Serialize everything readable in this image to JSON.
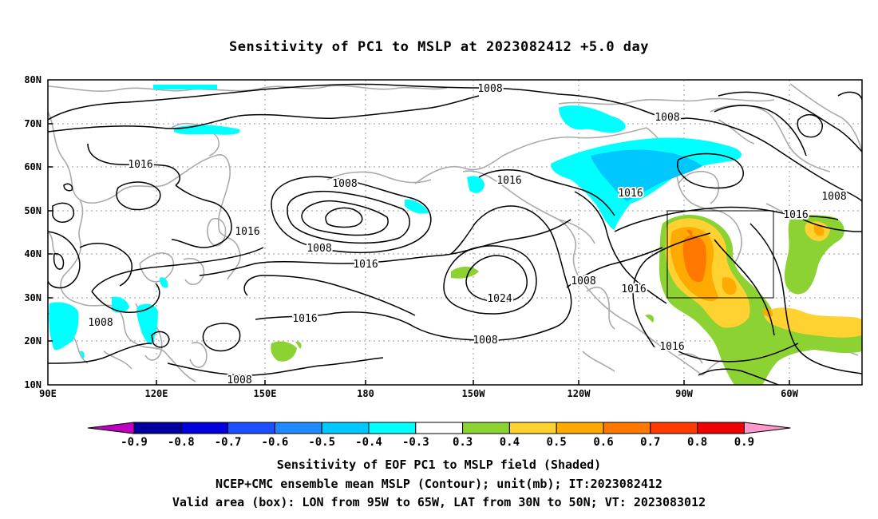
{
  "title": "Sensitivity of PC1 to MSLP at 2023082412 +5.0 day",
  "map": {
    "x_labels": [
      "90E",
      "120E",
      "150E",
      "180",
      "150W",
      "120W",
      "90W",
      "60W"
    ],
    "y_labels": [
      "80N",
      "70N",
      "60N",
      "50N",
      "40N",
      "30N",
      "20N",
      "10N"
    ],
    "contour_labels": [
      "1008",
      "1008",
      "1016",
      "1008",
      "1016",
      "1016",
      "1008",
      "1016",
      "1016",
      "1008",
      "1016",
      "1024",
      "1008",
      "1016",
      "1016",
      "1008",
      "1008",
      "1016",
      "1008"
    ]
  },
  "colorbar": {
    "labels": [
      "-0.9",
      "-0.8",
      "-0.7",
      "-0.6",
      "-0.5",
      "-0.4",
      "-0.3",
      "0.3",
      "0.4",
      "0.5",
      "0.6",
      "0.7",
      "0.8",
      "0.9"
    ],
    "colors": [
      "#c000c0",
      "#0000a0",
      "#0000dd",
      "#1e50ff",
      "#1e8cff",
      "#00c8ff",
      "#00ffff",
      "#ffffff",
      "#8cd232",
      "#ffd232",
      "#ffaa00",
      "#ff7800",
      "#ff3c00",
      "#ee0000",
      "#ff99cc"
    ]
  },
  "shading_colors": {
    "cyan": "#00ffff",
    "light_blue": "#00c8ff",
    "green": "#8cd232",
    "yellow": "#ffd232",
    "orange": "#ffaa00",
    "dark_orange": "#ff7800"
  },
  "captions": [
    "Sensitivity of EOF PC1 to MSLP field (Shaded)",
    "NCEP+CMC ensemble mean MSLP (Contour); unit(mb); IT:2023082412",
    "Valid area (box): LON from 95W to 65W, LAT from 30N to 50N; VT: 2023083012"
  ]
}
